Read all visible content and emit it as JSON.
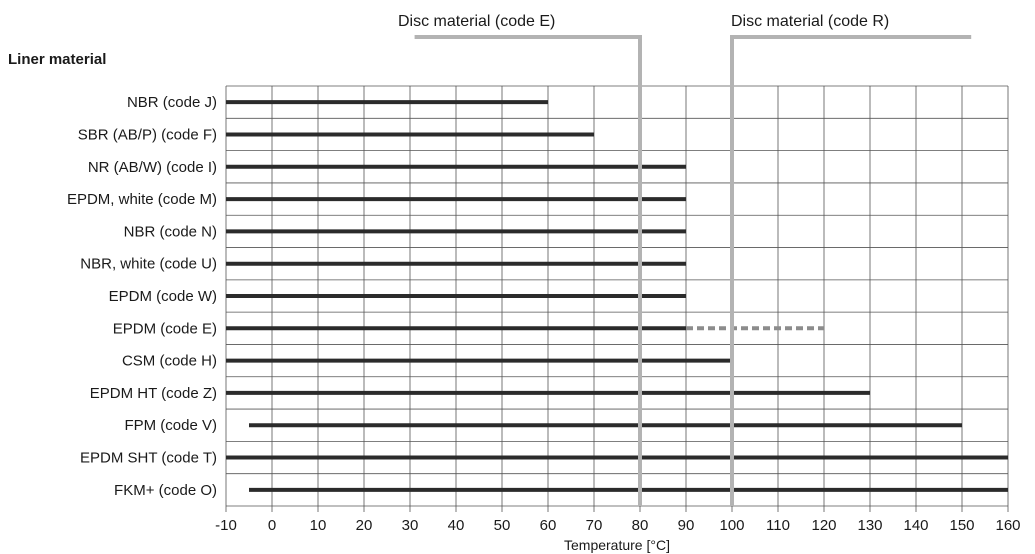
{
  "chart_data": {
    "type": "bar",
    "title": "Liner material",
    "xlabel": "Temperature [°C]",
    "xlim": [
      -10,
      160
    ],
    "xticks": [
      -10,
      0,
      10,
      20,
      30,
      40,
      50,
      60,
      70,
      80,
      90,
      100,
      110,
      120,
      130,
      140,
      150,
      160
    ],
    "grid": true,
    "bar_color": "#2b2b2b",
    "grid_color": "#555555",
    "marker_color": "#b3b3b3",
    "dashed_color": "#8c8c8c",
    "series": [
      {
        "category": "NBR (code J)",
        "min": -10,
        "max": 60
      },
      {
        "category": "SBR (AB/P) (code F)",
        "min": -10,
        "max": 70
      },
      {
        "category": "NR (AB/W) (code I)",
        "min": -10,
        "max": 90
      },
      {
        "category": "EPDM, white (code M)",
        "min": -10,
        "max": 90
      },
      {
        "category": "NBR (code N)",
        "min": -10,
        "max": 90
      },
      {
        "category": "NBR, white (code U)",
        "min": -10,
        "max": 90
      },
      {
        "category": "EPDM (code W)",
        "min": -10,
        "max": 90
      },
      {
        "category": "EPDM (code E)",
        "min": -10,
        "max": 90,
        "dashed_max": 120
      },
      {
        "category": "CSM (code H)",
        "min": -10,
        "max": 100
      },
      {
        "category": "EPDM HT (code Z)",
        "min": -10,
        "max": 130
      },
      {
        "category": "FPM (code V)",
        "min": -5,
        "max": 150
      },
      {
        "category": "EPDM SHT (code T)",
        "min": -10,
        "max": 160
      },
      {
        "category": "FKM+ (code O)",
        "min": -5,
        "max": 160
      }
    ],
    "annotations": [
      {
        "label": "Disc material (code E)",
        "value": 80
      },
      {
        "label": "Disc material (code R)",
        "value": 100
      }
    ]
  }
}
